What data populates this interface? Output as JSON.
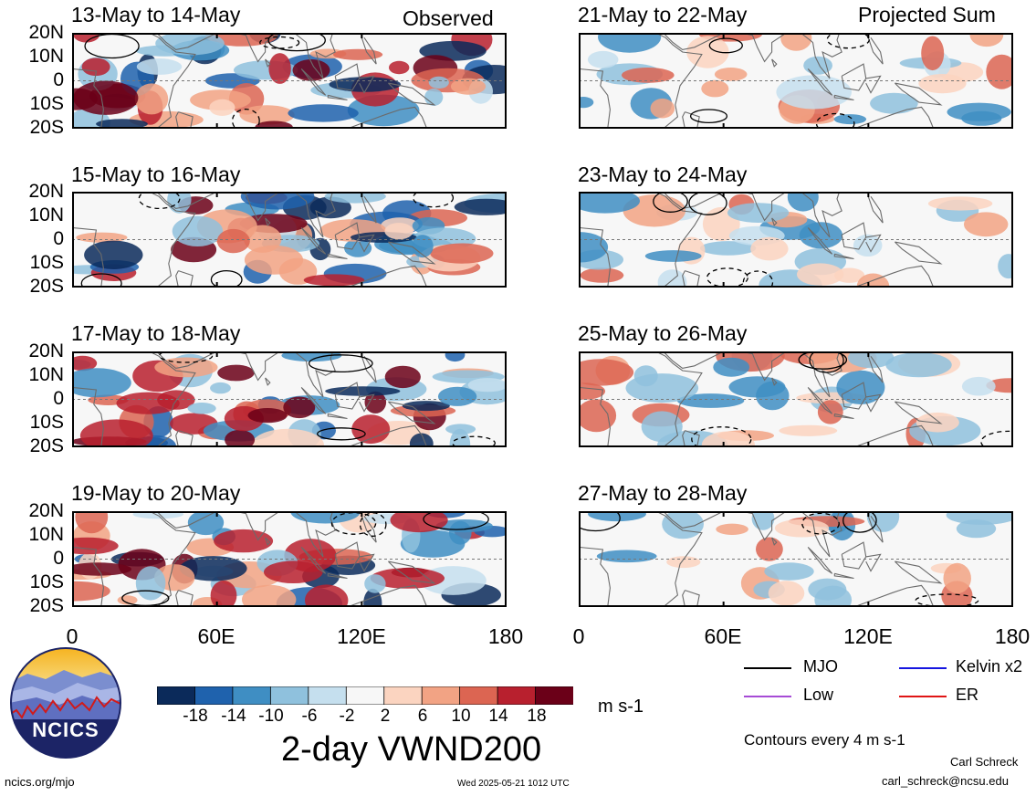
{
  "header": {
    "left_tag": "Observed",
    "right_tag": "Projected Sum"
  },
  "panels_left": [
    {
      "title": "13-May to 14-May"
    },
    {
      "title": "15-May to 16-May"
    },
    {
      "title": "17-May to 18-May"
    },
    {
      "title": "19-May to 20-May"
    }
  ],
  "panels_right": [
    {
      "title": "21-May to 22-May"
    },
    {
      "title": "23-May to 24-May"
    },
    {
      "title": "25-May to 26-May"
    },
    {
      "title": "27-May to 28-May"
    }
  ],
  "lat_labels": [
    "20N",
    "10N",
    "0",
    "10S",
    "20S"
  ],
  "lon_labels": [
    "0",
    "60E",
    "120E",
    "180"
  ],
  "colorbar": {
    "ticks": [
      "-18",
      "-14",
      "-10",
      "-6",
      "-2",
      "2",
      "6",
      "10",
      "14",
      "18"
    ],
    "colors": [
      "#0b2a5a",
      "#1f62ad",
      "#3f8ec3",
      "#8fc1dd",
      "#c5dfee",
      "#f7f7f7",
      "#fbd4c0",
      "#f2a384",
      "#dc6552",
      "#b8202e",
      "#6b0018"
    ],
    "unit": "m s-1"
  },
  "main_title": "2-day VWND200",
  "legend": {
    "items": [
      {
        "label": "MJO",
        "color": "#000000"
      },
      {
        "label": "Kelvin x2",
        "color": "#1515e0"
      },
      {
        "label": "Low",
        "color": "#a64bd6"
      },
      {
        "label": "ER",
        "color": "#e01515"
      }
    ],
    "contours_note": "Contours every 4 m s-1"
  },
  "logo_text": "NCICS",
  "footer": {
    "url": "ncics.org/mjo",
    "timestamp": "Wed 2025-05-21 1012 UTC",
    "author": "Carl Schreck",
    "email": "carl_schreck@ncsu.edu"
  }
}
